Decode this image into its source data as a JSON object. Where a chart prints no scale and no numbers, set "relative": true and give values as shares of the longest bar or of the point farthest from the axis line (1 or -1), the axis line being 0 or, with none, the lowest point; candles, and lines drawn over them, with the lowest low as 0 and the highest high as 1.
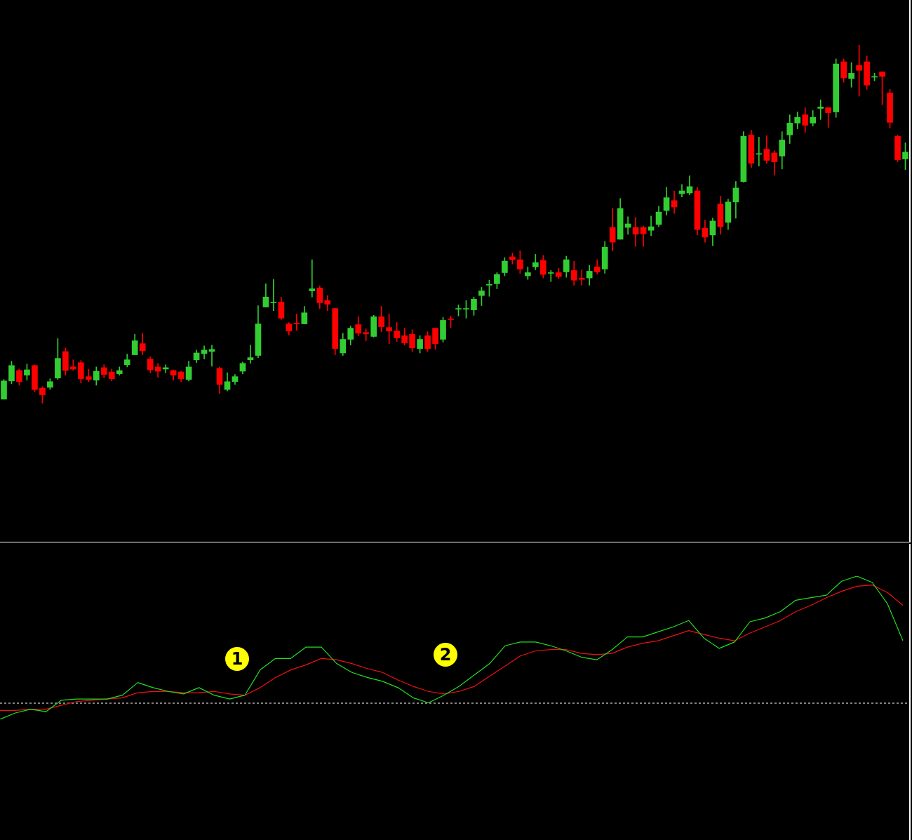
{
  "chart_data": [
    {
      "type": "candlestick",
      "relative": true,
      "tick_labels": false,
      "categories": [
        null,
        null,
        null,
        null,
        null,
        null,
        null,
        null,
        null,
        null,
        null,
        null,
        null,
        null,
        null,
        null,
        null,
        null,
        null,
        null,
        null,
        null,
        null,
        null,
        null,
        null,
        null,
        null,
        null,
        null,
        null,
        null,
        null,
        null,
        null,
        null,
        null,
        null,
        null,
        null,
        null,
        null,
        null,
        null,
        null,
        null,
        null,
        null,
        null,
        null,
        null,
        null,
        null,
        null,
        null,
        null,
        null,
        null,
        null,
        null,
        null,
        null,
        null,
        null,
        null,
        null,
        null,
        null,
        null,
        null,
        null,
        null,
        null,
        null,
        null,
        null,
        null,
        null,
        null,
        null,
        null,
        null,
        null,
        null,
        null,
        null,
        null,
        null,
        null,
        null,
        null,
        null,
        null,
        null,
        null,
        null,
        null,
        null,
        null,
        null,
        null,
        null,
        null,
        null,
        null,
        null,
        null,
        null,
        null,
        null,
        null,
        null,
        null,
        null,
        null,
        null,
        null,
        null
      ],
      "ohlc": [
        [
          0.012,
          0.067,
          0.012,
          0.063
        ],
        [
          0.063,
          0.118,
          0.055,
          0.106
        ],
        [
          0.092,
          0.096,
          0.051,
          0.061
        ],
        [
          0.079,
          0.11,
          0.065,
          0.094
        ],
        [
          0.106,
          0.108,
          0.033,
          0.039
        ],
        [
          0.043,
          0.047,
          0,
          0.024
        ],
        [
          0.045,
          0.069,
          0.039,
          0.061
        ],
        [
          0.071,
          0.181,
          0.067,
          0.126
        ],
        [
          0.145,
          0.155,
          0.079,
          0.092
        ],
        [
          0.102,
          0.122,
          0.092,
          0.096
        ],
        [
          0.114,
          0.12,
          0.057,
          0.069
        ],
        [
          0.075,
          0.096,
          0.061,
          0.067
        ],
        [
          0.065,
          0.102,
          0.051,
          0.09
        ],
        [
          0.1,
          0.108,
          0.071,
          0.081
        ],
        [
          0.088,
          0.096,
          0.063,
          0.069
        ],
        [
          0.083,
          0.102,
          0.079,
          0.092
        ],
        [
          0.108,
          0.138,
          0.102,
          0.122
        ],
        [
          0.136,
          0.193,
          0.136,
          0.175
        ],
        [
          0.167,
          0.196,
          0.136,
          0.147
        ],
        [
          0.124,
          0.13,
          0.086,
          0.094
        ],
        [
          0.102,
          0.112,
          0.073,
          0.09
        ],
        [
          0.096,
          0.108,
          0.086,
          0.1
        ],
        [
          0.092,
          0.094,
          0.065,
          0.079
        ],
        [
          0.088,
          0.09,
          0.061,
          0.069
        ],
        [
          0.067,
          0.118,
          0.063,
          0.102
        ],
        [
          0.122,
          0.149,
          0.114,
          0.141
        ],
        [
          0.139,
          0.161,
          0.124,
          0.149
        ],
        [
          0.145,
          0.163,
          0.104,
          0.151
        ],
        [
          0.098,
          0.102,
          0.028,
          0.053
        ],
        [
          0.039,
          0.086,
          0.035,
          0.061
        ],
        [
          0.061,
          0.081,
          0.053,
          0.075
        ],
        [
          0.09,
          0.116,
          0.083,
          0.112
        ],
        [
          0.122,
          0.163,
          0.112,
          0.128
        ],
        [
          0.134,
          0.273,
          0.128,
          0.222
        ],
        [
          0.269,
          0.334,
          0.269,
          0.297
        ],
        [
          0.281,
          0.346,
          0.259,
          0.283
        ],
        [
          0.283,
          0.297,
          0.234,
          0.238
        ],
        [
          0.222,
          0.226,
          0.191,
          0.202
        ],
        [
          0.224,
          0.25,
          0.204,
          0.222
        ],
        [
          0.222,
          0.271,
          0.222,
          0.253
        ],
        [
          0.314,
          0.401,
          0.297,
          0.32
        ],
        [
          0.322,
          0.328,
          0.265,
          0.281
        ],
        [
          0.287,
          0.301,
          0.259,
          0.277
        ],
        [
          0.265,
          0.265,
          0.136,
          0.153
        ],
        [
          0.141,
          0.196,
          0.134,
          0.179
        ],
        [
          0.179,
          0.216,
          0.163,
          0.21
        ],
        [
          0.22,
          0.242,
          0.189,
          0.196
        ],
        [
          0.198,
          0.208,
          0.175,
          0.194
        ],
        [
          0.187,
          0.246,
          0.185,
          0.242
        ],
        [
          0.242,
          0.271,
          0.2,
          0.214
        ],
        [
          0.212,
          0.25,
          0.167,
          0.202
        ],
        [
          0.202,
          0.226,
          0.173,
          0.183
        ],
        [
          0.189,
          0.21,
          0.163,
          0.169
        ],
        [
          0.193,
          0.206,
          0.145,
          0.155
        ],
        [
          0.153,
          0.189,
          0.141,
          0.179
        ],
        [
          0.189,
          0.2,
          0.145,
          0.153
        ],
        [
          0.21,
          0.21,
          0.151,
          0.167
        ],
        [
          0.179,
          0.24,
          0.171,
          0.232
        ],
        [
          0.236,
          0.244,
          0.212,
          0.234
        ],
        [
          0.263,
          0.275,
          0.244,
          0.265
        ],
        [
          0.263,
          0.287,
          0.238,
          0.265
        ],
        [
          0.261,
          0.297,
          0.246,
          0.291
        ],
        [
          0.301,
          0.324,
          0.273,
          0.314
        ],
        [
          0.33,
          0.344,
          0.299,
          0.332
        ],
        [
          0.334,
          0.365,
          0.32,
          0.36
        ],
        [
          0.365,
          0.407,
          0.356,
          0.397
        ],
        [
          0.409,
          0.42,
          0.389,
          0.401
        ],
        [
          0.401,
          0.426,
          0.363,
          0.375
        ],
        [
          0.356,
          0.381,
          0.346,
          0.365
        ],
        [
          0.381,
          0.416,
          0.373,
          0.393
        ],
        [
          0.399,
          0.413,
          0.35,
          0.36
        ],
        [
          0.363,
          0.371,
          0.34,
          0.365
        ],
        [
          0.365,
          0.377,
          0.348,
          0.354
        ],
        [
          0.367,
          0.411,
          0.352,
          0.401
        ],
        [
          0.371,
          0.397,
          0.33,
          0.344
        ],
        [
          0.35,
          0.373,
          0.33,
          0.346
        ],
        [
          0.35,
          0.385,
          0.33,
          0.369
        ],
        [
          0.381,
          0.401,
          0.361,
          0.367
        ],
        [
          0.375,
          0.452,
          0.363,
          0.436
        ],
        [
          0.491,
          0.544,
          0.426,
          0.45
        ],
        [
          0.458,
          0.572,
          0.458,
          0.544
        ],
        [
          0.491,
          0.521,
          0.472,
          0.501
        ],
        [
          0.491,
          0.519,
          0.438,
          0.472
        ],
        [
          0.491,
          0.495,
          0.438,
          0.473
        ],
        [
          0.483,
          0.523,
          0.468,
          0.493
        ],
        [
          0.499,
          0.55,
          0.493,
          0.534
        ],
        [
          0.538,
          0.603,
          0.525,
          0.574
        ],
        [
          0.566,
          0.593,
          0.53,
          0.548
        ],
        [
          0.585,
          0.611,
          0.576,
          0.593
        ],
        [
          0.587,
          0.635,
          0.582,
          0.605
        ],
        [
          0.593,
          0.603,
          0.47,
          0.485
        ],
        [
          0.489,
          0.511,
          0.45,
          0.464
        ],
        [
          0.47,
          0.517,
          0.44,
          0.509
        ],
        [
          0.556,
          0.578,
          0.472,
          0.493
        ],
        [
          0.505,
          0.57,
          0.485,
          0.562
        ],
        [
          0.562,
          0.619,
          0.517,
          0.601
        ],
        [
          0.619,
          0.758,
          0.617,
          0.745
        ],
        [
          0.749,
          0.762,
          0.658,
          0.67
        ],
        [
          0.695,
          0.743,
          0.662,
          0.697
        ],
        [
          0.709,
          0.747,
          0.67,
          0.678
        ],
        [
          0.699,
          0.705,
          0.637,
          0.674
        ],
        [
          0.69,
          0.758,
          0.654,
          0.735
        ],
        [
          0.749,
          0.805,
          0.725,
          0.782
        ],
        [
          0.782,
          0.813,
          0.766,
          0.798
        ],
        [
          0.805,
          0.825,
          0.756,
          0.776
        ],
        [
          0.782,
          0.817,
          0.774,
          0.798
        ],
        [
          0.823,
          0.847,
          0.792,
          0.827
        ],
        [
          0.825,
          0.825,
          0.77,
          0.811
        ],
        [
          0.813,
          0.961,
          0.798,
          0.947
        ],
        [
          0.953,
          0.961,
          0.896,
          0.908
        ],
        [
          0.906,
          0.951,
          0.882,
          0.921
        ],
        [
          0.943,
          1,
          0.857,
          0.929
        ],
        [
          0.953,
          0.969,
          0.876,
          0.888
        ],
        [
          0.91,
          0.921,
          0.9,
          0.912
        ],
        [
          0.925,
          0.925,
          0.833,
          0.912
        ],
        [
          0.866,
          0.876,
          0.768,
          0.784
        ],
        [
          0.745,
          0.749,
          0.674,
          0.68
        ],
        [
          0.682,
          0.727,
          0.652,
          0.701
        ]
      ],
      "colors": [
        "#32cd32",
        "#32cd32",
        "#ff0000",
        "#32cd32",
        "#ff0000",
        "#ff0000",
        "#32cd32",
        "#32cd32",
        "#ff0000",
        "#ff0000",
        "#ff0000",
        "#ff0000",
        "#32cd32",
        "#ff0000",
        "#ff0000",
        "#32cd32",
        "#32cd32",
        "#32cd32",
        "#ff0000",
        "#ff0000",
        "#ff0000",
        "#32cd32",
        "#ff0000",
        "#ff0000",
        "#32cd32",
        "#32cd32",
        "#32cd32",
        "#32cd32",
        "#ff0000",
        "#32cd32",
        "#32cd32",
        "#32cd32",
        "#32cd32",
        "#32cd32",
        "#32cd32",
        "#32cd32",
        "#ff0000",
        "#ff0000",
        "#ff0000",
        "#32cd32",
        "#32cd32",
        "#ff0000",
        "#ff0000",
        "#ff0000",
        "#32cd32",
        "#32cd32",
        "#ff0000",
        "#ff0000",
        "#32cd32",
        "#ff0000",
        "#ff0000",
        "#ff0000",
        "#ff0000",
        "#ff0000",
        "#32cd32",
        "#ff0000",
        "#ff0000",
        "#32cd32",
        "#ff0000",
        "#32cd32",
        "#32cd32",
        "#32cd32",
        "#32cd32",
        "#32cd32",
        "#32cd32",
        "#32cd32",
        "#ff0000",
        "#ff0000",
        "#32cd32",
        "#32cd32",
        "#ff0000",
        "#32cd32",
        "#ff0000",
        "#32cd32",
        "#ff0000",
        "#ff0000",
        "#32cd32",
        "#ff0000",
        "#32cd32",
        "#ff0000",
        "#32cd32",
        "#32cd32",
        "#ff0000",
        "#ff0000",
        "#32cd32",
        "#32cd32",
        "#32cd32",
        "#ff0000",
        "#32cd32",
        "#32cd32",
        "#ff0000",
        "#ff0000",
        "#32cd32",
        "#ff0000",
        "#32cd32",
        "#32cd32",
        "#32cd32",
        "#ff0000",
        "#32cd32",
        "#ff0000",
        "#ff0000",
        "#32cd32",
        "#32cd32",
        "#32cd32",
        "#ff0000",
        "#32cd32",
        "#32cd32",
        "#ff0000",
        "#32cd32",
        "#ff0000",
        "#32cd32",
        "#ff0000",
        "#ff0000",
        "#32cd32",
        "#ff0000",
        "#ff0000",
        "#ff0000",
        "#32cd32"
      ]
    },
    {
      "type": "line",
      "relative": true,
      "tick_labels": false,
      "categories": [
        null,
        null,
        null,
        null,
        null,
        null,
        null,
        null,
        null,
        null,
        null,
        null,
        null,
        null,
        null,
        null,
        null,
        null,
        null,
        null,
        null,
        null,
        null,
        null,
        null,
        null,
        null,
        null,
        null,
        null,
        null,
        null,
        null,
        null,
        null,
        null,
        null,
        null,
        null,
        null,
        null,
        null,
        null,
        null,
        null,
        null,
        null,
        null,
        null,
        null,
        null,
        null,
        null,
        null,
        null,
        null,
        null,
        null,
        null,
        null
      ],
      "series": [
        {
          "color": "#22dd22",
          "values": [
            -0.13,
            -0.08,
            -0.05,
            -0.07,
            0.02,
            0.03,
            0.03,
            0.03,
            0.06,
            0.16,
            0.12,
            0.09,
            0.07,
            0.12,
            0.06,
            0.03,
            0.06,
            0.26,
            0.35,
            0.35,
            0.44,
            0.44,
            0.31,
            0.24,
            0.2,
            0.17,
            0.12,
            0.04,
            0,
            0.06,
            0.13,
            0.22,
            0.31,
            0.45,
            0.48,
            0.48,
            0.45,
            0.41,
            0.36,
            0.34,
            0.42,
            0.52,
            0.52,
            0.56,
            0.6,
            0.65,
            0.51,
            0.43,
            0.48,
            0.64,
            0.67,
            0.72,
            0.81,
            0.83,
            0.85,
            0.96,
            1,
            0.95,
            0.78,
            0.49
          ]
        },
        {
          "color": "#ee1111",
          "values": [
            -0.06,
            -0.06,
            -0.05,
            -0.05,
            -0.02,
            0.01,
            0.02,
            0.03,
            0.04,
            0.08,
            0.09,
            0.09,
            0.08,
            0.08,
            0.09,
            0.07,
            0.06,
            0.12,
            0.2,
            0.26,
            0.3,
            0.35,
            0.34,
            0.31,
            0.27,
            0.24,
            0.18,
            0.13,
            0.09,
            0.07,
            0.09,
            0.13,
            0.21,
            0.29,
            0.37,
            0.41,
            0.42,
            0.42,
            0.39,
            0.38,
            0.39,
            0.44,
            0.47,
            0.49,
            0.53,
            0.57,
            0.54,
            0.51,
            0.49,
            0.55,
            0.6,
            0.65,
            0.72,
            0.77,
            0.83,
            0.88,
            0.92,
            0.93,
            0.87,
            0.77
          ]
        }
      ],
      "marker": "none",
      "ref_lines": [
        {
          "axis": "y",
          "value": 0,
          "color": "#ffffff",
          "line_style": "dashed"
        }
      ],
      "annotations": [
        "1",
        "2"
      ]
    }
  ]
}
